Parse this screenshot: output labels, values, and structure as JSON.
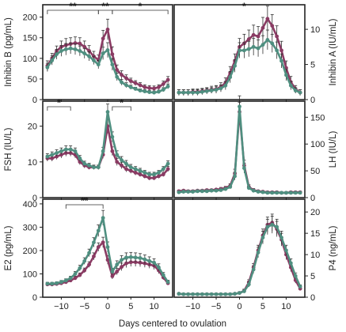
{
  "colors": {
    "series1": "#8a3b63",
    "series2": "#4f8f80",
    "frame": "#222222",
    "text": "#222222"
  },
  "chart_data": {
    "type": "line",
    "xlabel": "Days centered to ovulation",
    "xlim": [
      -14,
      14
    ],
    "xticks": [
      -10,
      -5,
      0,
      5,
      10
    ],
    "x": [
      -13,
      -12,
      -11,
      -10,
      -9,
      -8,
      -7,
      -6,
      -5,
      -4,
      -3,
      -2,
      -1,
      0,
      1,
      2,
      3,
      4,
      5,
      6,
      7,
      8,
      9,
      10,
      11,
      12,
      13
    ],
    "panels": [
      {
        "id": "inhibin-b",
        "ylabel": "Inhibin B (pg/mL)",
        "ylim": [
          0,
          230
        ],
        "yticks": [
          0,
          50,
          100,
          150,
          200
        ],
        "axis_side": "left",
        "significance": [
          {
            "x1": -13,
            "x2": -2,
            "label": "**"
          },
          {
            "x1": -2,
            "x2": 1,
            "label": "**"
          },
          {
            "x1": 1,
            "x2": 13,
            "label": "*"
          }
        ],
        "series": [
          {
            "values": [
              82,
              100,
              118,
              128,
              132,
              135,
              137,
              136,
              128,
              118,
              105,
              96,
              148,
              170,
              110,
              72,
              60,
              52,
              45,
              40,
              35,
              30,
              28,
              27,
              30,
              38,
              48
            ],
            "errors": [
              12,
              12,
              12,
              14,
              16,
              15,
              15,
              14,
              14,
              13,
              12,
              12,
              20,
              25,
              18,
              12,
              10,
              8,
              7,
              6,
              6,
              6,
              6,
              6,
              6,
              7,
              8
            ]
          },
          {
            "values": [
              78,
              95,
              110,
              118,
              122,
              124,
              122,
              118,
              112,
              105,
              95,
              85,
              112,
              120,
              85,
              55,
              42,
              35,
              30,
              26,
              22,
              20,
              18,
              17,
              19,
              24,
              32
            ],
            "errors": [
              10,
              11,
              12,
              13,
              14,
              13,
              13,
              12,
              12,
              11,
              10,
              10,
              15,
              18,
              14,
              9,
              7,
              6,
              5,
              4,
              4,
              4,
              4,
              4,
              4,
              5,
              6
            ]
          }
        ]
      },
      {
        "id": "inhibin-a",
        "ylabel": "Inhibin A (IU/mL)",
        "ylim": [
          0,
          13.5
        ],
        "yticks": [
          0,
          5,
          10
        ],
        "axis_side": "right",
        "significance": [
          {
            "x1": 1,
            "x2": 1,
            "label": "*"
          }
        ],
        "series": [
          {
            "values": [
              1.0,
              1.0,
              1.0,
              1.1,
              1.1,
              1.2,
              1.3,
              1.4,
              1.5,
              1.8,
              2.4,
              3.8,
              5.5,
              7.5,
              8.0,
              8.6,
              9.2,
              9.0,
              10.2,
              11.5,
              10.5,
              9.0,
              7.0,
              4.5,
              2.5,
              1.5,
              1.0
            ],
            "errors": [
              0.4,
              0.4,
              0.4,
              0.4,
              0.4,
              0.4,
              0.4,
              0.5,
              0.5,
              0.6,
              0.7,
              0.9,
              1.0,
              1.2,
              1.3,
              1.3,
              1.4,
              1.4,
              1.5,
              1.8,
              1.6,
              1.5,
              1.3,
              1.0,
              0.8,
              0.5,
              0.4
            ]
          },
          {
            "values": [
              1.0,
              1.0,
              1.0,
              1.0,
              1.0,
              1.1,
              1.2,
              1.3,
              1.4,
              1.6,
              2.0,
              3.2,
              4.8,
              7.0,
              7.0,
              7.2,
              7.5,
              7.3,
              7.8,
              8.5,
              8.0,
              7.0,
              5.5,
              3.5,
              2.0,
              1.3,
              1.0
            ],
            "errors": [
              0.4,
              0.4,
              0.4,
              0.4,
              0.4,
              0.4,
              0.4,
              0.4,
              0.5,
              0.5,
              0.6,
              0.8,
              0.9,
              1.1,
              1.1,
              1.1,
              1.2,
              1.2,
              1.3,
              1.4,
              1.3,
              1.2,
              1.0,
              0.8,
              0.6,
              0.4,
              0.4
            ]
          }
        ]
      },
      {
        "id": "fsh",
        "ylabel": "FSH (IU/L)",
        "ylim": [
          0,
          27
        ],
        "yticks": [
          0,
          10,
          20
        ],
        "axis_side": "left",
        "significance": [
          {
            "x1": -13,
            "x2": -8,
            "label": "*"
          },
          {
            "x1": 1,
            "x2": 5,
            "label": "*"
          }
        ],
        "series": [
          {
            "values": [
              11,
              11,
              11.5,
              12,
              12.5,
              12.5,
              12,
              10,
              9,
              8.5,
              8.5,
              8.5,
              12,
              20,
              13,
              10,
              9,
              8,
              7.5,
              7,
              6.5,
              6,
              5.5,
              5.5,
              6,
              6.5,
              8
            ],
            "errors": [
              0.8,
              0.8,
              0.8,
              0.9,
              0.9,
              0.9,
              0.9,
              0.8,
              0.7,
              0.6,
              0.6,
              0.6,
              1,
              2,
              1.2,
              1,
              0.9,
              0.8,
              0.7,
              0.7,
              0.6,
              0.6,
              0.6,
              0.6,
              0.6,
              0.6,
              0.7
            ]
          },
          {
            "values": [
              11.5,
              12,
              12.5,
              13,
              13.5,
              13.5,
              13,
              11,
              9.5,
              9,
              8.5,
              8.5,
              13,
              24,
              17,
              12,
              10.5,
              9.5,
              8.5,
              8,
              7.5,
              7,
              6.5,
              6.5,
              7,
              8,
              9.5
            ],
            "errors": [
              0.8,
              0.8,
              0.9,
              0.9,
              1,
              1,
              0.9,
              0.8,
              0.7,
              0.6,
              0.6,
              0.6,
              1.1,
              2.2,
              1.4,
              1.1,
              1,
              0.9,
              0.8,
              0.7,
              0.7,
              0.6,
              0.6,
              0.6,
              0.6,
              0.7,
              0.8
            ]
          }
        ]
      },
      {
        "id": "lh",
        "ylabel": "LH (IU/L)",
        "ylim": [
          0,
          180
        ],
        "yticks": [
          0,
          50,
          100,
          150
        ],
        "axis_side": "right",
        "significance": [],
        "series": [
          {
            "values": [
              12,
              13,
              12,
              12,
              13,
              13,
              14,
              14,
              15,
              16,
              18,
              22,
              45,
              160,
              60,
              20,
              14,
              12,
              11,
              10,
              10,
              10,
              9,
              9,
              10,
              10,
              10
            ],
            "errors": [
              2,
              2,
              2,
              2,
              2,
              2,
              2,
              2,
              2,
              3,
              3,
              4,
              8,
              18,
              10,
              4,
              3,
              2,
              2,
              2,
              2,
              2,
              2,
              2,
              2,
              2,
              2
            ]
          },
          {
            "values": [
              10,
              11,
              11,
              11,
              12,
              12,
              12,
              13,
              13,
              14,
              16,
              20,
              40,
              170,
              55,
              18,
              13,
              11,
              10,
              9,
              9,
              9,
              9,
              9,
              9,
              9,
              9
            ],
            "errors": [
              2,
              2,
              2,
              2,
              2,
              2,
              2,
              2,
              2,
              2,
              3,
              3,
              7,
              20,
              9,
              3,
              2,
              2,
              2,
              2,
              2,
              2,
              2,
              2,
              2,
              2,
              2
            ]
          }
        ]
      },
      {
        "id": "e2",
        "ylabel": "E2 (pg/mL)",
        "ylim": [
          0,
          420
        ],
        "yticks": [
          0,
          100,
          200,
          300,
          400
        ],
        "axis_side": "left",
        "significance": [
          {
            "x1": -9,
            "x2": -1,
            "label": "**"
          }
        ],
        "series": [
          {
            "values": [
              55,
              55,
              57,
              60,
              65,
              72,
              82,
              95,
              115,
              140,
              175,
              215,
              235,
              160,
              90,
              110,
              130,
              145,
              150,
              150,
              148,
              145,
              140,
              135,
              115,
              85,
              60
            ],
            "errors": [
              6,
              6,
              6,
              6,
              7,
              7,
              8,
              9,
              10,
              12,
              15,
              18,
              22,
              18,
              12,
              14,
              16,
              18,
              18,
              18,
              17,
              17,
              16,
              16,
              14,
              10,
              7
            ]
          },
          {
            "values": [
              58,
              58,
              60,
              65,
              72,
              82,
              100,
              125,
              155,
              190,
              235,
              285,
              340,
              215,
              110,
              140,
              160,
              170,
              172,
              170,
              168,
              162,
              155,
              148,
              128,
              95,
              65
            ],
            "errors": [
              6,
              6,
              6,
              7,
              7,
              8,
              10,
              12,
              14,
              16,
              20,
              25,
              32,
              22,
              14,
              16,
              18,
              20,
              20,
              20,
              19,
              19,
              18,
              17,
              15,
              11,
              8
            ]
          }
        ]
      },
      {
        "id": "p4",
        "ylabel": "P4 (ng/mL)",
        "ylim": [
          0,
          23
        ],
        "yticks": [
          0,
          5,
          10,
          15,
          20
        ],
        "axis_side": "right",
        "significance": [],
        "series": [
          {
            "values": [
              0.8,
              0.7,
              0.7,
              0.7,
              0.7,
              0.7,
              0.7,
              0.7,
              0.7,
              0.7,
              0.7,
              0.7,
              0.8,
              1.0,
              1.5,
              3.5,
              7,
              11,
              14.5,
              17,
              17.5,
              16,
              13.5,
              10,
              7,
              4,
              2
            ],
            "errors": [
              0.2,
              0.2,
              0.2,
              0.2,
              0.2,
              0.2,
              0.2,
              0.2,
              0.2,
              0.2,
              0.2,
              0.2,
              0.2,
              0.3,
              0.4,
              0.6,
              0.9,
              1.2,
              1.5,
              1.8,
              2,
              1.8,
              1.5,
              1.2,
              1,
              0.7,
              0.4
            ]
          },
          {
            "values": [
              0.8,
              0.7,
              0.7,
              0.7,
              0.7,
              0.7,
              0.7,
              0.7,
              0.7,
              0.7,
              0.7,
              0.7,
              0.8,
              1.0,
              1.4,
              3,
              6.5,
              10.5,
              14,
              16.5,
              17,
              16.5,
              14,
              11,
              8,
              5,
              2.5
            ],
            "errors": [
              0.2,
              0.2,
              0.2,
              0.2,
              0.2,
              0.2,
              0.2,
              0.2,
              0.2,
              0.2,
              0.2,
              0.2,
              0.2,
              0.3,
              0.4,
              0.6,
              0.9,
              1.2,
              1.5,
              1.8,
              2,
              1.8,
              1.5,
              1.2,
              1,
              0.7,
              0.4
            ]
          }
        ]
      }
    ]
  }
}
